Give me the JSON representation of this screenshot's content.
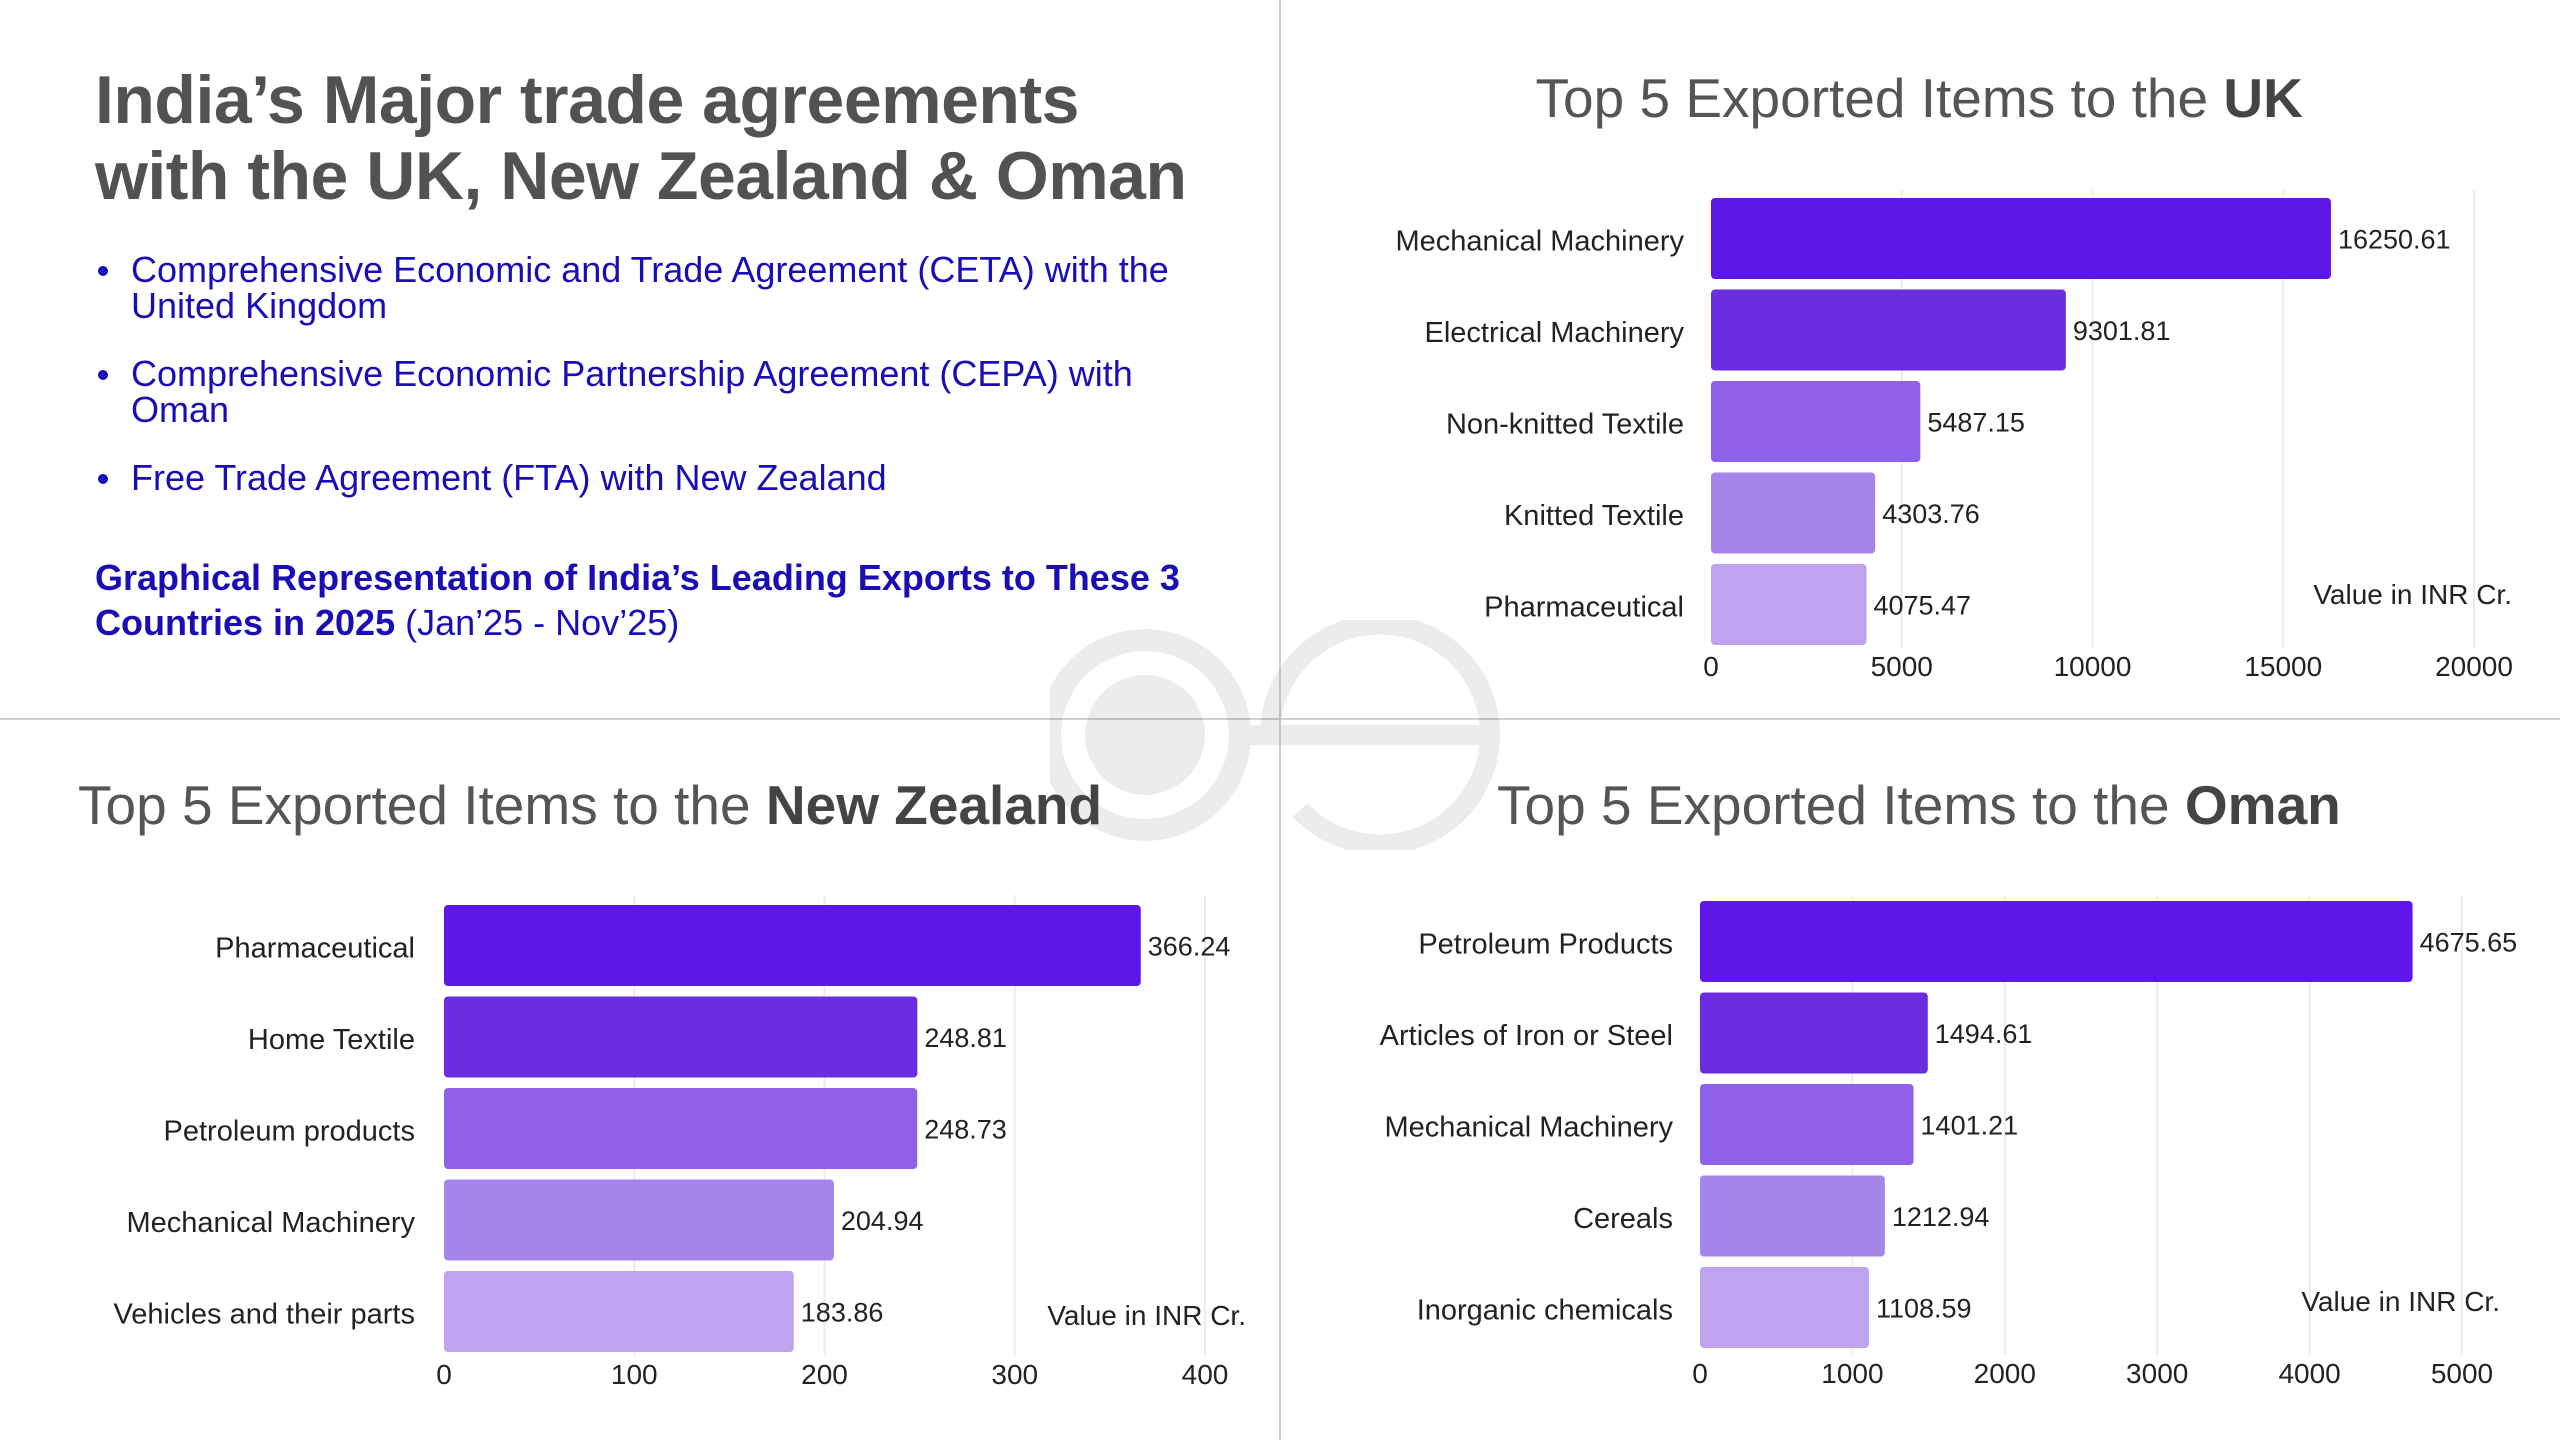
{
  "header": {
    "title_line1": "India’s Major trade agreements",
    "title_line2": "with the UK, New Zealand & Oman",
    "bullets": [
      "Comprehensive Economic and Trade Agreement (CETA) with the United Kingdom",
      "Comprehensive Economic Partnership Agreement (CEPA) with Oman",
      "Free Trade Agreement (FTA) with New Zealand"
    ],
    "subtitle_bold": "Graphical Representation of India’s Leading Exports to These 3 Countries in 2025",
    "subtitle_period": "(Jan’25 - Nov’25)"
  },
  "colors": [
    "#5f17e9",
    "#6a2ee0",
    "#8f60e8",
    "#a685ea",
    "#bfa3ef"
  ],
  "chart_data": [
    {
      "type": "bar",
      "orientation": "horizontal",
      "title_prefix": "Top 5 Exported Items to the ",
      "title_country": "UK",
      "categories": [
        "Mechanical Machinery",
        "Electrical Machinery",
        "Non-knitted Textile",
        "Knitted Textile",
        "Pharmaceutical"
      ],
      "values": [
        16250.61,
        9301.81,
        5487.15,
        4303.76,
        4075.47
      ],
      "value_labels": [
        "16250.61",
        "9301.81",
        "5487.15",
        "4303.76",
        "4075.47"
      ],
      "xlim": [
        0,
        20000
      ],
      "xticks": [
        "0",
        "5000",
        "10000",
        "15000",
        "20000"
      ],
      "xtick_values": [
        0,
        5000,
        10000,
        15000,
        20000
      ],
      "unit_label": "Value in INR Cr.",
      "grid": true
    },
    {
      "type": "bar",
      "orientation": "horizontal",
      "title_prefix": "Top 5 Exported Items to the ",
      "title_country": "New Zealand",
      "categories": [
        "Pharmaceutical",
        "Home Textile",
        "Petroleum products",
        "Mechanical Machinery",
        "Vehicles and their parts"
      ],
      "values": [
        366.24,
        248.81,
        248.73,
        204.94,
        183.86
      ],
      "value_labels": [
        "366.24",
        "248.81",
        "248.73",
        "204.94",
        "183.86"
      ],
      "xlim": [
        0,
        400
      ],
      "xticks": [
        "0",
        "100",
        "200",
        "300",
        "400"
      ],
      "xtick_values": [
        0,
        100,
        200,
        300,
        400
      ],
      "unit_label": "Value in INR Cr.",
      "grid": true
    },
    {
      "type": "bar",
      "orientation": "horizontal",
      "title_prefix": "Top 5 Exported Items to the ",
      "title_country": "Oman",
      "categories": [
        "Petroleum Products",
        "Articles of Iron or Steel",
        "Mechanical Machinery",
        "Cereals",
        "Inorganic chemicals"
      ],
      "values": [
        4675.65,
        1494.61,
        1401.21,
        1212.94,
        1108.59
      ],
      "value_labels": [
        "4675.65",
        "1494.61",
        "1401.21",
        "1212.94",
        "1108.59"
      ],
      "xlim": [
        0,
        5000
      ],
      "xticks": [
        "0",
        "1000",
        "2000",
        "3000",
        "4000",
        "5000"
      ],
      "xtick_values": [
        0,
        1000,
        2000,
        3000,
        4000,
        5000
      ],
      "unit_label": "Value in INR Cr.",
      "grid": true
    }
  ]
}
